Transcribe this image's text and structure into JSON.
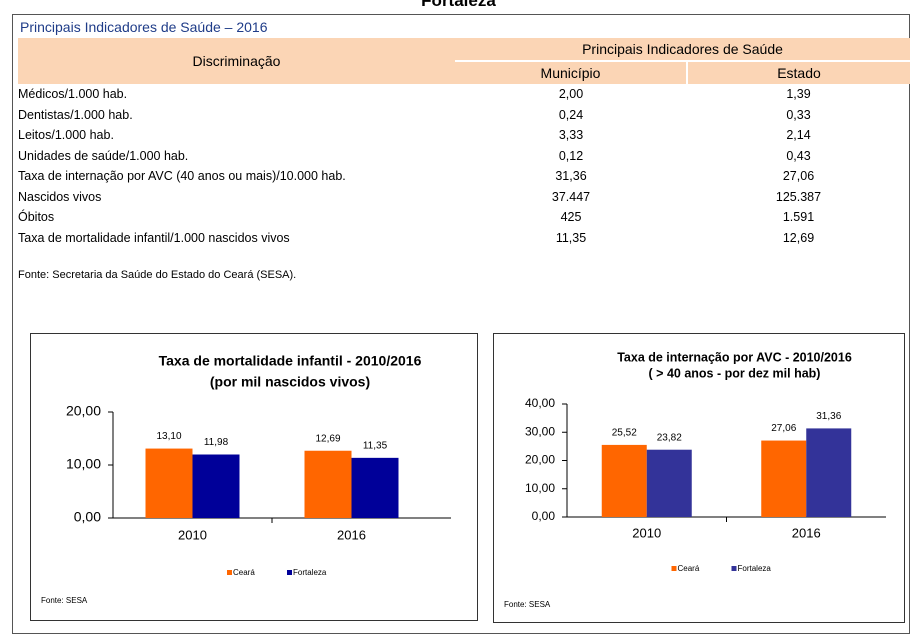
{
  "header": "Fortaleza",
  "title": "Principais Indicadores de Saúde – 2016",
  "table": {
    "columns": {
      "label": "Discriminação",
      "group": "Principais Indicadores de Saúde",
      "sub": [
        "Município",
        "Estado"
      ]
    },
    "rows": [
      [
        "Médicos/1.000 hab.",
        "2,00",
        "1,39"
      ],
      [
        "Dentistas/1.000 hab.",
        "0,24",
        "0,33"
      ],
      [
        "Leitos/1.000 hab.",
        "3,33",
        "2,14"
      ],
      [
        "Unidades de saúde/1.000 hab.",
        "0,12",
        "0,43"
      ],
      [
        "Taxa de internação por AVC (40 anos ou mais)/10.000 hab.",
        "31,36",
        "27,06"
      ],
      [
        "Nascidos vivos",
        "37.447",
        "125.387"
      ],
      [
        "Óbitos",
        "425",
        "1.591"
      ],
      [
        "Taxa de mortalidade infantil/1.000 nascidos vivos",
        "11,35",
        "12,69"
      ]
    ]
  },
  "source": "Fonte: Secretaria da Saúde do Estado do Ceará (SESA).",
  "chart_data": [
    {
      "type": "bar",
      "title": [
        "Taxa de mortalidade infantil  - 2010/2016",
        "(por mil nascidos vivos)"
      ],
      "categories": [
        "2010",
        "2016"
      ],
      "series": [
        {
          "name": "Ceará",
          "color": "#ff6600",
          "values": [
            13.1,
            12.69
          ],
          "value_labels": [
            "13,10",
            "12,69"
          ]
        },
        {
          "name": "Fortaleza",
          "color": "#000099",
          "values": [
            11.98,
            11.35
          ],
          "value_labels": [
            "11,98",
            "11,35"
          ]
        }
      ],
      "ylim": [
        0,
        20
      ],
      "yticks": [
        {
          "value": 0,
          "label": "0,00"
        },
        {
          "value": 10,
          "label": "10,00"
        },
        {
          "value": 20,
          "label": "20,00"
        }
      ],
      "grid": false,
      "legend": "bottom",
      "source": "Fonte: SESA"
    },
    {
      "type": "bar",
      "title": [
        "Taxa de internação por AVC - 2010/2016",
        "( > 40 anos - por dez mil hab)"
      ],
      "categories": [
        "2010",
        "2016"
      ],
      "series": [
        {
          "name": "Ceará",
          "color": "#ff6600",
          "values": [
            25.52,
            27.06
          ],
          "value_labels": [
            "25,52",
            "27,06"
          ]
        },
        {
          "name": "Fortaleza",
          "color": "#333399",
          "values": [
            23.82,
            31.36
          ],
          "value_labels": [
            "23,82",
            "31,36"
          ]
        }
      ],
      "ylim": [
        0,
        40
      ],
      "yticks": [
        {
          "value": 0,
          "label": "0,00"
        },
        {
          "value": 10,
          "label": "10,00"
        },
        {
          "value": 20,
          "label": "20,00"
        },
        {
          "value": 30,
          "label": "30,00"
        },
        {
          "value": 40,
          "label": "40,00"
        }
      ],
      "grid": false,
      "legend": "bottom",
      "source": "Fonte: SESA"
    }
  ]
}
